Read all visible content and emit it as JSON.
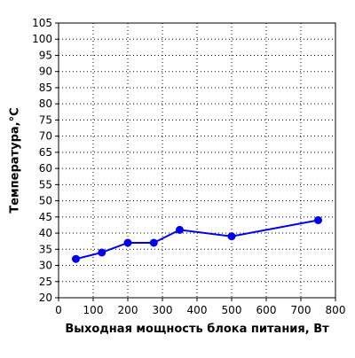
{
  "chart_data": {
    "type": "line",
    "title": "",
    "xlabel": "Выходная мощность блока питания, Вт",
    "ylabel": "Температура,°C",
    "xlim": [
      0,
      800
    ],
    "ylim": [
      20,
      105
    ],
    "x_ticks": [
      0,
      100,
      200,
      300,
      400,
      500,
      600,
      700,
      800
    ],
    "y_ticks": [
      20,
      25,
      30,
      35,
      40,
      45,
      50,
      55,
      60,
      65,
      70,
      75,
      80,
      85,
      90,
      95,
      100,
      105
    ],
    "grid": true,
    "grid_style": "dotted",
    "legend": "none",
    "series": [
      {
        "color": "#0000ee",
        "marker": "circle",
        "x": [
          50,
          125,
          200,
          275,
          350,
          500,
          750
        ],
        "y": [
          32,
          34,
          37,
          37,
          41,
          39,
          44
        ]
      }
    ]
  }
}
